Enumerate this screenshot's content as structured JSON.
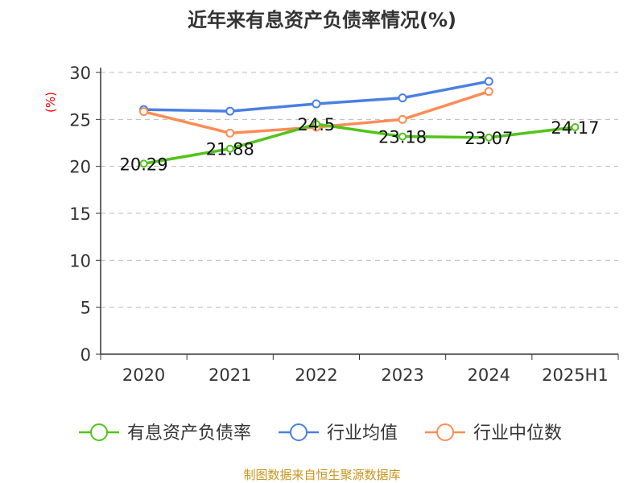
{
  "chart_data": {
    "type": "line",
    "title": "近年来有息资产负债率情况(%)",
    "ylabel": "(%)",
    "categories": [
      "2020",
      "2021",
      "2022",
      "2023",
      "2024",
      "2025H1"
    ],
    "ylim": [
      0,
      30
    ],
    "yticks": [
      "0",
      "5",
      "10",
      "15",
      "20",
      "25",
      "30"
    ],
    "grid": true,
    "legend_placement": "bottom",
    "series": [
      {
        "name": "有息资产负债率",
        "color": "#52c41a",
        "values": [
          20.29,
          21.88,
          24.5,
          23.18,
          23.07,
          24.17
        ],
        "labels": [
          "20.29",
          "21.88",
          "24.5",
          "23.18",
          "23.07",
          "24.17"
        ]
      },
      {
        "name": "行业均值",
        "color": "#4a80e0",
        "values": [
          26.05,
          25.88,
          26.66,
          27.29,
          29.05,
          null
        ]
      },
      {
        "name": "行业中位数",
        "color": "#ff8c55",
        "values": [
          25.83,
          23.54,
          24.17,
          25.0,
          27.97,
          null
        ]
      }
    ]
  },
  "footer": "制图数据来自恒生聚源数据库"
}
